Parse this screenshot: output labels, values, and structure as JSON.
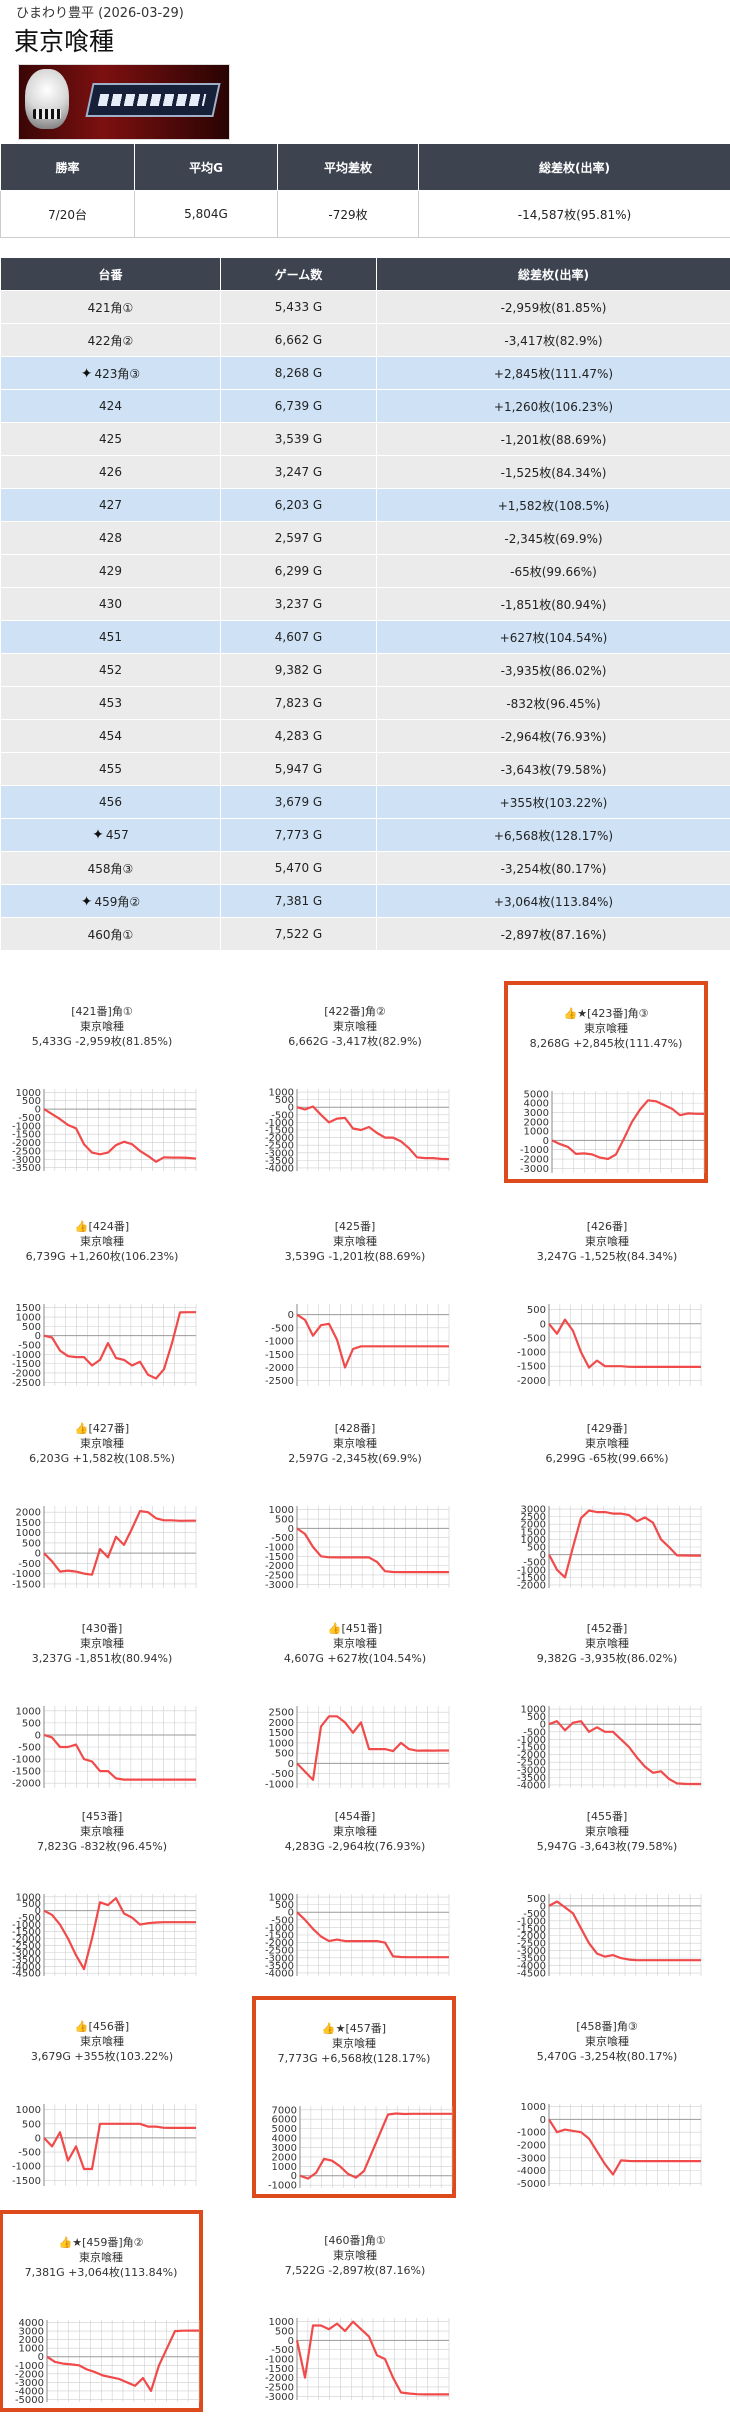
{
  "store": "ひまわり豊平 (2026-03-29)",
  "machine": "東京喰種",
  "summary": {
    "headers": [
      "勝率",
      "平均G",
      "平均差枚",
      "総差枚(出率)"
    ],
    "values": [
      "7/20台",
      "5,804G",
      "-729枚",
      "-14,587枚(95.81%)"
    ]
  },
  "machines": {
    "headers": [
      "台番",
      "ゲーム数",
      "総差枚(出率)"
    ],
    "rows": [
      {
        "no": "421角①",
        "games": "5,433 G",
        "diff": "-2,959枚(81.85%)",
        "spark": false
      },
      {
        "no": "422角②",
        "games": "6,662 G",
        "diff": "-3,417枚(82.9%)",
        "spark": false
      },
      {
        "no": "423角③",
        "games": "8,268 G",
        "diff": "+2,845枚(111.47%)",
        "spark": true
      },
      {
        "no": "424",
        "games": "6,739 G",
        "diff": "+1,260枚(106.23%)",
        "spark": false
      },
      {
        "no": "425",
        "games": "3,539 G",
        "diff": "-1,201枚(88.69%)",
        "spark": false
      },
      {
        "no": "426",
        "games": "3,247 G",
        "diff": "-1,525枚(84.34%)",
        "spark": false
      },
      {
        "no": "427",
        "games": "6,203 G",
        "diff": "+1,582枚(108.5%)",
        "spark": false
      },
      {
        "no": "428",
        "games": "2,597 G",
        "diff": "-2,345枚(69.9%)",
        "spark": false
      },
      {
        "no": "429",
        "games": "6,299 G",
        "diff": "-65枚(99.66%)",
        "spark": false
      },
      {
        "no": "430",
        "games": "3,237 G",
        "diff": "-1,851枚(80.94%)",
        "spark": false
      },
      {
        "no": "451",
        "games": "4,607 G",
        "diff": "+627枚(104.54%)",
        "spark": false
      },
      {
        "no": "452",
        "games": "9,382 G",
        "diff": "-3,935枚(86.02%)",
        "spark": false
      },
      {
        "no": "453",
        "games": "7,823 G",
        "diff": "-832枚(96.45%)",
        "spark": false
      },
      {
        "no": "454",
        "games": "4,283 G",
        "diff": "-2,964枚(76.93%)",
        "spark": false
      },
      {
        "no": "455",
        "games": "5,947 G",
        "diff": "-3,643枚(79.58%)",
        "spark": false
      },
      {
        "no": "456",
        "games": "3,679 G",
        "diff": "+355枚(103.22%)",
        "spark": false
      },
      {
        "no": "457",
        "games": "7,773 G",
        "diff": "+6,568枚(128.17%)",
        "spark": true
      },
      {
        "no": "458角③",
        "games": "5,470 G",
        "diff": "-3,254枚(80.17%)",
        "spark": false
      },
      {
        "no": "459角②",
        "games": "7,381 G",
        "diff": "+3,064枚(113.84%)",
        "spark": true
      },
      {
        "no": "460角①",
        "games": "7,522 G",
        "diff": "-2,897枚(87.16%)",
        "spark": false
      }
    ]
  },
  "colors": {
    "line": "#f04a4a",
    "positive_row": "#cfe2f5",
    "negative_row": "#ebebeb",
    "highlight_border": "#dd4b1c",
    "header_bg": "#3d4450"
  },
  "icons": {
    "good": "thumbs-up-icon",
    "sparkle": "sparkle-icon"
  },
  "chart_data": [
    {
      "type": "line",
      "title": "[421番]角①",
      "subtitle": "東京喰種",
      "stats": "5,433G -2,959枚(81.85%)",
      "good": false,
      "star": false,
      "highlight": false,
      "yticks": [
        1000,
        500,
        0,
        -500,
        -1000,
        -1500,
        -2000,
        -2500,
        -3000,
        -3500
      ],
      "ylim": [
        -3700,
        1200
      ],
      "y": [
        0,
        -300,
        -600,
        -950,
        -1150,
        -2100,
        -2600,
        -2700,
        -2600,
        -2150,
        -1950,
        -2100,
        -2500,
        -2800,
        -3150,
        -2880,
        -2900,
        -2900,
        -2920,
        -2959
      ]
    },
    {
      "type": "line",
      "title": "[422番]角②",
      "subtitle": "東京喰種",
      "stats": "6,662G -3,417枚(82.9%)",
      "good": false,
      "star": false,
      "highlight": false,
      "yticks": [
        1000,
        500,
        0,
        -500,
        -1000,
        -1500,
        -2000,
        -2500,
        -3000,
        -3500,
        -4000
      ],
      "ylim": [
        -4200,
        1200
      ],
      "y": [
        0,
        -150,
        50,
        -500,
        -1000,
        -750,
        -700,
        -1400,
        -1500,
        -1300,
        -1700,
        -2000,
        -2000,
        -2250,
        -2700,
        -3300,
        -3350,
        -3350,
        -3400,
        -3417
      ]
    },
    {
      "type": "line",
      "title": "[423番]角③",
      "subtitle": "東京喰種",
      "stats": "8,268G +2,845枚(111.47%)",
      "good": true,
      "star": true,
      "highlight": true,
      "yticks": [
        5000,
        4000,
        3000,
        2000,
        1000,
        0,
        -1000,
        -2000,
        -3000
      ],
      "ylim": [
        -3500,
        5300
      ],
      "y": [
        0,
        -400,
        -700,
        -1450,
        -1400,
        -1500,
        -1850,
        -2000,
        -1500,
        200,
        2000,
        3300,
        4300,
        4200,
        3800,
        3400,
        2700,
        2900,
        2850,
        2845
      ]
    },
    {
      "type": "line",
      "title": "[424番]",
      "subtitle": "東京喰種",
      "stats": "6,739G +1,260枚(106.23%)",
      "good": true,
      "star": false,
      "highlight": false,
      "yticks": [
        1500,
        1000,
        500,
        0,
        -500,
        -1000,
        -1500,
        -2000,
        -2500
      ],
      "ylim": [
        -2700,
        1700
      ],
      "y": [
        0,
        -100,
        -800,
        -1100,
        -1150,
        -1150,
        -1600,
        -1300,
        -400,
        -1200,
        -1300,
        -1600,
        -1400,
        -2100,
        -2300,
        -1800,
        -400,
        1250,
        1260,
        1260
      ]
    },
    {
      "type": "line",
      "title": "[425番]",
      "subtitle": "東京喰種",
      "stats": "3,539G -1,201枚(88.69%)",
      "good": false,
      "star": false,
      "highlight": false,
      "yticks": [
        0,
        -500,
        -1000,
        -1500,
        -2000,
        -2500
      ],
      "ylim": [
        -2700,
        400
      ],
      "y": [
        0,
        -200,
        -800,
        -400,
        -350,
        -950,
        -2000,
        -1300,
        -1200,
        -1200,
        -1200,
        -1200,
        -1200,
        -1200,
        -1200,
        -1200,
        -1200,
        -1200,
        -1200,
        -1201
      ]
    },
    {
      "type": "line",
      "title": "[426番]",
      "subtitle": "東京喰種",
      "stats": "3,247G -1,525枚(84.34%)",
      "good": false,
      "star": false,
      "highlight": false,
      "yticks": [
        500,
        0,
        -500,
        -1000,
        -1500,
        -2000
      ],
      "ylim": [
        -2200,
        700
      ],
      "y": [
        0,
        -350,
        150,
        -250,
        -1000,
        -1550,
        -1300,
        -1500,
        -1500,
        -1500,
        -1520,
        -1525,
        -1525,
        -1525,
        -1525,
        -1525,
        -1525,
        -1525,
        -1525,
        -1525
      ]
    },
    {
      "type": "line",
      "title": "[427番]",
      "subtitle": "東京喰種",
      "stats": "6,203G +1,582枚(108.5%)",
      "good": true,
      "star": false,
      "highlight": false,
      "yticks": [
        2000,
        1500,
        1000,
        500,
        0,
        -500,
        -1000,
        -1500
      ],
      "ylim": [
        -1700,
        2300
      ],
      "y": [
        0,
        -400,
        -900,
        -850,
        -900,
        -1000,
        -1050,
        200,
        -200,
        800,
        400,
        1200,
        2050,
        2000,
        1700,
        1600,
        1600,
        1580,
        1585,
        1582
      ]
    },
    {
      "type": "line",
      "title": "[428番]",
      "subtitle": "東京喰種",
      "stats": "2,597G -2,345枚(69.9%)",
      "good": false,
      "star": false,
      "highlight": false,
      "yticks": [
        1000,
        500,
        0,
        -500,
        -1000,
        -1500,
        -2000,
        -2500,
        -3000
      ],
      "ylim": [
        -3200,
        1200
      ],
      "y": [
        0,
        -300,
        -1000,
        -1500,
        -1550,
        -1560,
        -1560,
        -1560,
        -1560,
        -1560,
        -1800,
        -2300,
        -2340,
        -2345,
        -2345,
        -2345,
        -2345,
        -2345,
        -2345,
        -2345
      ]
    },
    {
      "type": "line",
      "title": "[429番]",
      "subtitle": "東京喰種",
      "stats": "6,299G -65枚(99.66%)",
      "good": false,
      "star": false,
      "highlight": false,
      "yticks": [
        3000,
        2500,
        2000,
        1500,
        1000,
        500,
        0,
        -500,
        -1000,
        -1500,
        -2000
      ],
      "ylim": [
        -2200,
        3200
      ],
      "y": [
        0,
        -1000,
        -1500,
        500,
        2400,
        2900,
        2800,
        2800,
        2700,
        2700,
        2600,
        2200,
        2450,
        2100,
        1000,
        500,
        -50,
        -60,
        -65,
        -65
      ]
    },
    {
      "type": "line",
      "title": "[430番]",
      "subtitle": "東京喰種",
      "stats": "3,237G -1,851枚(80.94%)",
      "good": false,
      "star": false,
      "highlight": false,
      "yticks": [
        1000,
        500,
        0,
        -500,
        -1000,
        -1500,
        -2000
      ],
      "ylim": [
        -2200,
        1200
      ],
      "y": [
        0,
        -100,
        -500,
        -500,
        -400,
        -1000,
        -1100,
        -1500,
        -1500,
        -1800,
        -1850,
        -1850,
        -1850,
        -1850,
        -1850,
        -1851,
        -1851,
        -1851,
        -1851,
        -1851
      ]
    },
    {
      "type": "line",
      "title": "[451番]",
      "subtitle": "東京喰種",
      "stats": "4,607G +627枚(104.54%)",
      "good": true,
      "star": false,
      "highlight": false,
      "yticks": [
        2500,
        2000,
        1500,
        1000,
        500,
        0,
        -500,
        -1000
      ],
      "ylim": [
        -1200,
        2800
      ],
      "y": [
        0,
        -400,
        -800,
        1800,
        2300,
        2300,
        2000,
        1500,
        2000,
        700,
        700,
        700,
        600,
        1000,
        700,
        620,
        630,
        625,
        627,
        627
      ]
    },
    {
      "type": "line",
      "title": "[452番]",
      "subtitle": "東京喰種",
      "stats": "9,382G -3,935枚(86.02%)",
      "good": false,
      "star": false,
      "highlight": false,
      "yticks": [
        1000,
        500,
        0,
        -500,
        -1000,
        -1500,
        -2000,
        -2500,
        -3000,
        -3500,
        -4000
      ],
      "ylim": [
        -4200,
        1200
      ],
      "y": [
        0,
        200,
        -400,
        100,
        200,
        -500,
        -200,
        -500,
        -500,
        -1000,
        -1500,
        -2200,
        -2800,
        -3200,
        -3100,
        -3600,
        -3900,
        -3930,
        -3935,
        -3935
      ]
    },
    {
      "type": "line",
      "title": "[453番]",
      "subtitle": "東京喰種",
      "stats": "7,823G -832枚(96.45%)",
      "good": false,
      "star": false,
      "highlight": false,
      "yticks": [
        1000,
        500,
        0,
        -500,
        -1000,
        -1500,
        -2000,
        -2500,
        -3000,
        -3500,
        -4000,
        -4500
      ],
      "ylim": [
        -4700,
        1200
      ],
      "y": [
        0,
        -300,
        -1000,
        -2000,
        -3200,
        -4200,
        -2000,
        600,
        400,
        900,
        -200,
        -500,
        -1000,
        -900,
        -850,
        -830,
        -832,
        -832,
        -832,
        -832
      ]
    },
    {
      "type": "line",
      "title": "[454番]",
      "subtitle": "東京喰種",
      "stats": "4,283G -2,964枚(76.93%)",
      "good": false,
      "star": false,
      "highlight": false,
      "yticks": [
        1000,
        500,
        0,
        -500,
        -1000,
        -1500,
        -2000,
        -2500,
        -3000,
        -3500,
        -4000
      ],
      "ylim": [
        -4200,
        1200
      ],
      "y": [
        0,
        -500,
        -1100,
        -1600,
        -1900,
        -1800,
        -1900,
        -1900,
        -1900,
        -1900,
        -1900,
        -2000,
        -2900,
        -2950,
        -2960,
        -2964,
        -2964,
        -2964,
        -2964,
        -2964
      ]
    },
    {
      "type": "line",
      "title": "[455番]",
      "subtitle": "東京喰種",
      "stats": "5,947G -3,643枚(79.58%)",
      "good": false,
      "star": false,
      "highlight": false,
      "yticks": [
        500,
        0,
        -500,
        -1000,
        -1500,
        -2000,
        -2500,
        -3000,
        -3500,
        -4000,
        -4500
      ],
      "ylim": [
        -4700,
        800
      ],
      "y": [
        0,
        300,
        -100,
        -500,
        -1500,
        -2500,
        -3200,
        -3400,
        -3300,
        -3500,
        -3600,
        -3640,
        -3643,
        -3643,
        -3643,
        -3643,
        -3643,
        -3643,
        -3643,
        -3643
      ]
    },
    {
      "type": "line",
      "title": "[456番]",
      "subtitle": "東京喰種",
      "stats": "3,679G +355枚(103.22%)",
      "good": true,
      "star": false,
      "highlight": false,
      "yticks": [
        1000,
        500,
        0,
        -500,
        -1000,
        -1500
      ],
      "ylim": [
        -1700,
        1200
      ],
      "y": [
        0,
        -300,
        200,
        -800,
        -300,
        -1100,
        -1100,
        500,
        500,
        500,
        500,
        500,
        500,
        400,
        400,
        360,
        355,
        355,
        355,
        355
      ]
    },
    {
      "type": "line",
      "title": "[457番]",
      "subtitle": "東京喰種",
      "stats": "7,773G +6,568枚(128.17%)",
      "good": true,
      "star": true,
      "highlight": true,
      "yticks": [
        7000,
        6000,
        5000,
        4000,
        3000,
        2000,
        1000,
        0,
        -1000
      ],
      "ylim": [
        -1300,
        7400
      ],
      "y": [
        0,
        -300,
        300,
        1800,
        1600,
        1000,
        200,
        -200,
        500,
        2500,
        4500,
        6500,
        6600,
        6550,
        6568,
        6568,
        6568,
        6568,
        6568,
        6568
      ]
    },
    {
      "type": "line",
      "title": "[458番]角③",
      "subtitle": "東京喰種",
      "stats": "5,470G -3,254枚(80.17%)",
      "good": false,
      "star": false,
      "highlight": false,
      "yticks": [
        1000,
        0,
        -1000,
        -2000,
        -3000,
        -4000,
        -5000
      ],
      "ylim": [
        -5200,
        1200
      ],
      "y": [
        0,
        -1000,
        -800,
        -900,
        -1000,
        -1500,
        -2500,
        -3500,
        -4300,
        -3200,
        -3250,
        -3254,
        -3254,
        -3254,
        -3254,
        -3254,
        -3254,
        -3254,
        -3254,
        -3254
      ]
    },
    {
      "type": "line",
      "title": "[459番]角②",
      "subtitle": "東京喰種",
      "stats": "7,381G +3,064枚(113.84%)",
      "good": true,
      "star": true,
      "highlight": true,
      "yticks": [
        4000,
        3000,
        2000,
        1000,
        0,
        -1000,
        -2000,
        -3000,
        -4000,
        -5000
      ],
      "ylim": [
        -5300,
        4300
      ],
      "y": [
        0,
        -600,
        -800,
        -900,
        -1000,
        -1500,
        -1800,
        -2200,
        -2400,
        -2600,
        -3000,
        -3400,
        -2500,
        -4000,
        -1000,
        1000,
        3000,
        3050,
        3064,
        3064
      ]
    },
    {
      "type": "line",
      "title": "[460番]角①",
      "subtitle": "東京喰種",
      "stats": "7,522G -2,897枚(87.16%)",
      "good": false,
      "star": false,
      "highlight": false,
      "yticks": [
        1000,
        500,
        0,
        -500,
        -1000,
        -1500,
        -2000,
        -2500,
        -3000
      ],
      "ylim": [
        -3200,
        1200
      ],
      "y": [
        0,
        -2000,
        800,
        800,
        600,
        900,
        500,
        1000,
        600,
        200,
        -800,
        -1000,
        -2000,
        -2800,
        -2850,
        -2890,
        -2897,
        -2897,
        -2897,
        -2897
      ]
    }
  ]
}
